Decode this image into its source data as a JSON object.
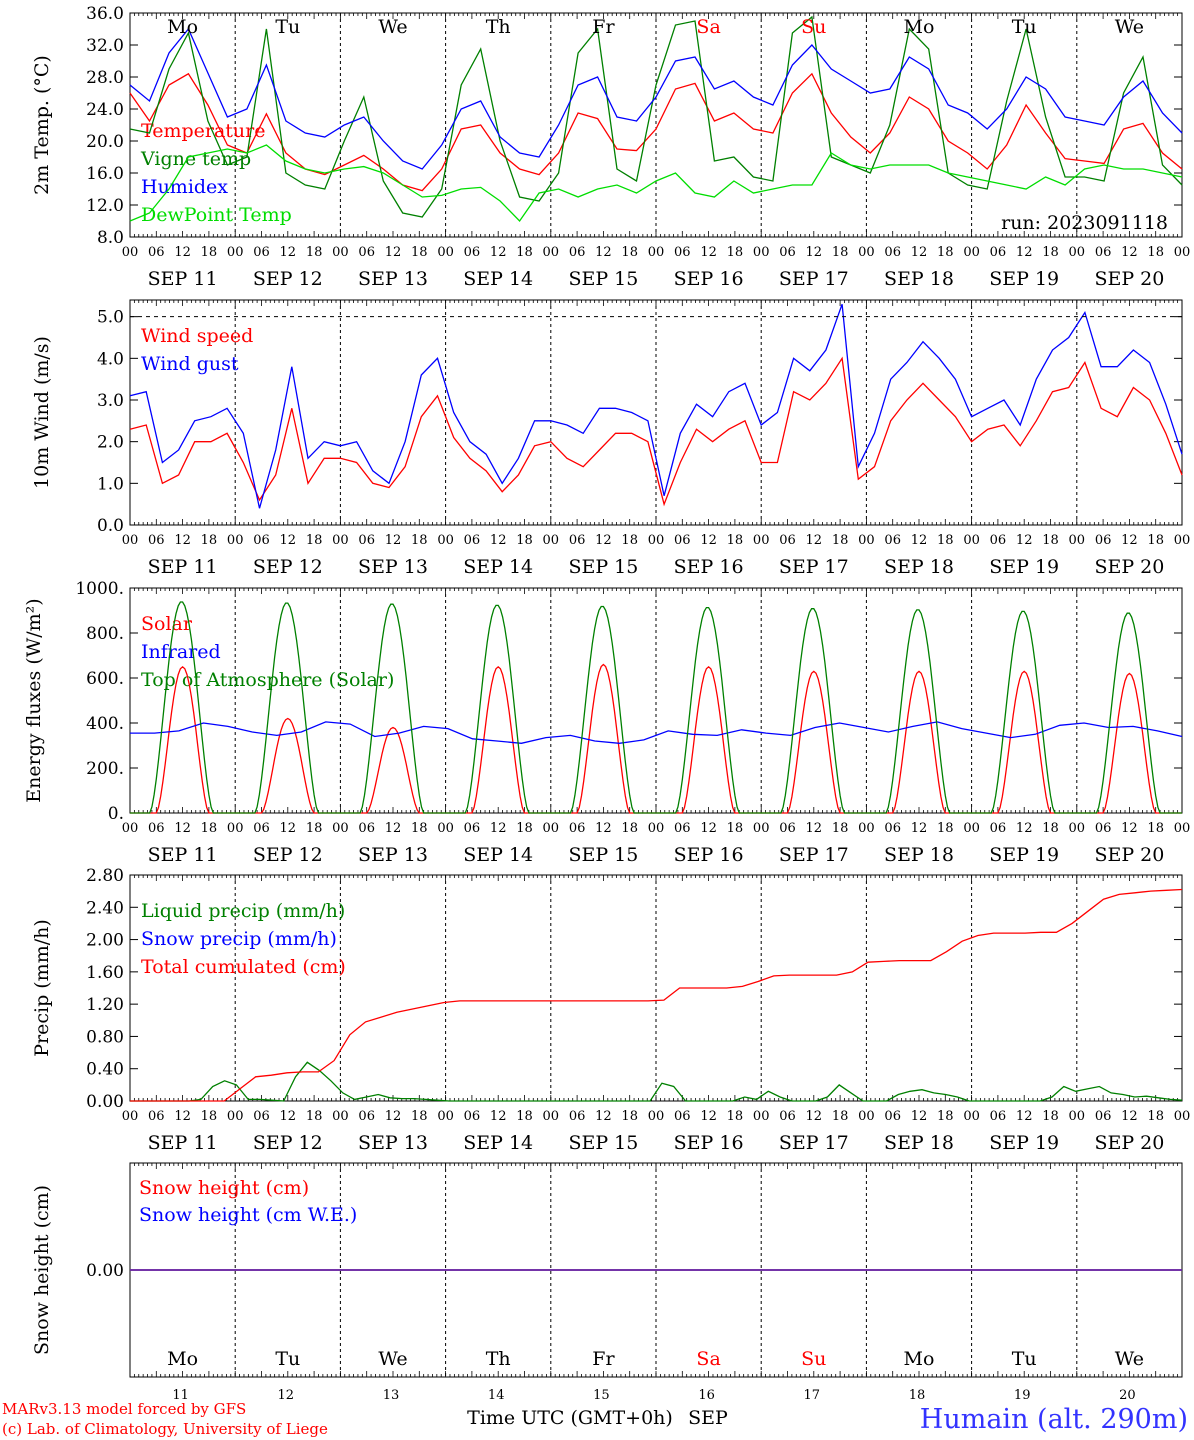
{
  "run_label": "run: 2023091118",
  "model_label": "MARv3.13 model forced by GFS",
  "lab_label": "(c) Lab. of Climatology, University of Liege",
  "xaxis_title": "Time UTC (GMT+0h)",
  "month_label": "SEP",
  "station_label": "Humain (alt. 290m)",
  "days": [
    {
      "dow": "Mo",
      "num": "11",
      "date": "SEP 11",
      "weekend": false
    },
    {
      "dow": "Tu",
      "num": "12",
      "date": "SEP 12",
      "weekend": false
    },
    {
      "dow": "We",
      "num": "13",
      "date": "SEP 13",
      "weekend": false
    },
    {
      "dow": "Th",
      "num": "14",
      "date": "SEP 14",
      "weekend": false
    },
    {
      "dow": "Fr",
      "num": "15",
      "date": "SEP 15",
      "weekend": false
    },
    {
      "dow": "Sa",
      "num": "16",
      "date": "SEP 16",
      "weekend": true
    },
    {
      "dow": "Su",
      "num": "17",
      "date": "SEP 17",
      "weekend": true
    },
    {
      "dow": "Mo",
      "num": "18",
      "date": "SEP 18",
      "weekend": false
    },
    {
      "dow": "Tu",
      "num": "19",
      "date": "SEP 19",
      "weekend": false
    },
    {
      "dow": "We",
      "num": "20",
      "date": "SEP 20",
      "weekend": false
    }
  ],
  "hour_ticks": [
    "00",
    "06",
    "12",
    "18"
  ],
  "final_hour_tick": "00",
  "colors": {
    "red": "#ff0000",
    "blue": "#0000ff",
    "green": "#008000",
    "lightgreen": "#00dd00",
    "purple": "#7030a0",
    "weekend": "#ff0000",
    "axis": "#000000",
    "station": "#3333ff"
  },
  "chart_data": [
    {
      "type": "line",
      "id": "temperature",
      "ylabel": "2m Temp. (°C)",
      "ylim": [
        8.0,
        36.0
      ],
      "yticks": [
        "8.0",
        "12.0",
        "16.0",
        "20.0",
        "24.0",
        "28.0",
        "32.0",
        "36.0"
      ],
      "legend": [
        "Temperature",
        "Vigne temp",
        "Humidex",
        "DewPoint Temp"
      ],
      "grid": false,
      "series": [
        {
          "name": "Temperature",
          "color": "red",
          "values": [
            26.0,
            22.5,
            27.0,
            28.4,
            24.5,
            19.5,
            18.5,
            23.4,
            18.5,
            16.5,
            15.8,
            17.0,
            18.2,
            16.5,
            14.5,
            13.8,
            16.5,
            21.5,
            22.0,
            18.5,
            16.5,
            15.8,
            18.5,
            23.5,
            22.8,
            19.0,
            18.8,
            21.5,
            26.5,
            27.2,
            22.5,
            23.5,
            21.5,
            21.0,
            26.0,
            28.4,
            23.5,
            20.5,
            18.5,
            21.0,
            25.5,
            24.0,
            20.0,
            18.5,
            16.5,
            19.5,
            24.5,
            21.0,
            17.8,
            17.5,
            17.2,
            21.5,
            22.2,
            18.5,
            16.5
          ]
        },
        {
          "name": "Vigne temp",
          "color": "green",
          "values": [
            21.5,
            21.0,
            29.0,
            33.5,
            22.5,
            17.0,
            18.0,
            34.0,
            16.0,
            14.5,
            14.0,
            20.0,
            25.5,
            15.0,
            11.0,
            10.5,
            14.0,
            27.0,
            31.5,
            20.0,
            13.0,
            12.5,
            16.0,
            31.0,
            34.0,
            16.5,
            15.0,
            27.0,
            34.5,
            35.0,
            17.5,
            18.0,
            15.5,
            15.0,
            33.5,
            35.5,
            18.0,
            17.0,
            16.0,
            22.0,
            34.0,
            31.5,
            16.0,
            14.5,
            14.0,
            25.0,
            34.0,
            23.0,
            15.5,
            15.5,
            15.0,
            26.0,
            30.5,
            17.0,
            14.5
          ]
        },
        {
          "name": "Humidex",
          "color": "blue",
          "values": [
            27.0,
            25.0,
            31.0,
            34.0,
            28.5,
            23.0,
            24.0,
            29.5,
            22.5,
            21.0,
            20.5,
            22.0,
            23.0,
            20.0,
            17.5,
            16.5,
            19.5,
            24.0,
            25.0,
            20.5,
            18.5,
            18.0,
            22.0,
            27.0,
            28.0,
            23.0,
            22.5,
            25.5,
            30.0,
            30.5,
            26.5,
            27.5,
            25.5,
            24.5,
            29.5,
            32.0,
            29.0,
            27.5,
            26.0,
            26.5,
            30.5,
            29.0,
            24.5,
            23.5,
            21.5,
            24.0,
            28.0,
            26.5,
            23.0,
            22.5,
            22.0,
            25.5,
            27.5,
            23.5,
            21.0
          ]
        },
        {
          "name": "DewPoint Temp",
          "color": "lightgreen",
          "values": [
            10.0,
            11.0,
            14.0,
            18.0,
            18.5,
            19.0,
            18.5,
            19.5,
            17.5,
            16.5,
            16.0,
            16.5,
            16.8,
            16.0,
            14.5,
            13.0,
            13.2,
            14.0,
            14.2,
            12.5,
            10.0,
            13.5,
            14.0,
            13.0,
            14.0,
            14.5,
            13.5,
            15.0,
            16.0,
            13.5,
            13.0,
            15.0,
            13.5,
            14.0,
            14.5,
            14.5,
            18.5,
            17.0,
            16.5,
            17.0,
            17.0,
            17.0,
            16.0,
            15.5,
            15.0,
            14.5,
            14.0,
            15.5,
            14.5,
            16.5,
            17.0,
            16.5,
            16.5,
            16.0,
            15.5
          ]
        }
      ]
    },
    {
      "type": "line",
      "id": "wind",
      "ylabel": "10m Wind (m/s)",
      "ylim": [
        0.0,
        5.4
      ],
      "yticks": [
        "0.0",
        "1.0",
        "2.0",
        "3.0",
        "4.0",
        "5.0"
      ],
      "legend": [
        "Wind speed",
        "Wind gust"
      ],
      "grid": false,
      "series": [
        {
          "name": "Wind speed",
          "color": "red",
          "values": [
            2.3,
            2.4,
            1.0,
            1.2,
            2.0,
            2.0,
            2.2,
            1.5,
            0.6,
            1.2,
            2.8,
            1.0,
            1.6,
            1.6,
            1.5,
            1.0,
            0.9,
            1.4,
            2.6,
            3.1,
            2.1,
            1.6,
            1.3,
            0.8,
            1.2,
            1.9,
            2.0,
            1.6,
            1.4,
            1.8,
            2.2,
            2.2,
            2.0,
            0.5,
            1.5,
            2.3,
            2.0,
            2.3,
            2.5,
            1.5,
            1.5,
            3.2,
            3.0,
            3.4,
            4.0,
            1.1,
            1.4,
            2.5,
            3.0,
            3.4,
            3.0,
            2.6,
            2.0,
            2.3,
            2.4,
            1.9,
            2.5,
            3.2,
            3.3,
            3.9,
            2.8,
            2.6,
            3.3,
            3.0,
            2.2,
            1.2
          ]
        },
        {
          "name": "Wind gust",
          "color": "blue",
          "values": [
            3.1,
            3.2,
            1.5,
            1.8,
            2.5,
            2.6,
            2.8,
            2.2,
            0.4,
            1.8,
            3.8,
            1.6,
            2.0,
            1.9,
            2.0,
            1.3,
            1.0,
            2.0,
            3.6,
            4.0,
            2.7,
            2.0,
            1.7,
            1.0,
            1.6,
            2.5,
            2.5,
            2.4,
            2.2,
            2.8,
            2.8,
            2.7,
            2.5,
            0.7,
            2.2,
            2.9,
            2.6,
            3.2,
            3.4,
            2.4,
            2.7,
            4.0,
            3.7,
            4.2,
            5.3,
            1.4,
            2.2,
            3.5,
            3.9,
            4.4,
            4.0,
            3.5,
            2.6,
            2.8,
            3.0,
            2.4,
            3.5,
            4.2,
            4.5,
            5.1,
            3.8,
            3.8,
            4.2,
            3.9,
            2.9,
            1.7
          ]
        }
      ]
    },
    {
      "type": "line",
      "id": "energy",
      "ylabel": "Energy fluxes (W/m²)",
      "ylim": [
        0,
        1000
      ],
      "yticks": [
        "0.",
        "200.",
        "400.",
        "600.",
        "800.",
        "1000."
      ],
      "legend": [
        "Solar",
        "Infrared",
        "Top of Atmosphere (Solar)"
      ],
      "grid": false,
      "series": [
        {
          "name": "Solar",
          "color": "red",
          "peaks": [
            650,
            420,
            380,
            650,
            660,
            650,
            630,
            630,
            630,
            620
          ]
        },
        {
          "name": "Infrared",
          "color": "blue",
          "values": [
            355,
            355,
            365,
            400,
            385,
            360,
            345,
            360,
            405,
            395,
            340,
            355,
            385,
            375,
            330,
            320,
            310,
            335,
            345,
            320,
            310,
            325,
            365,
            350,
            345,
            370,
            355,
            345,
            380,
            400,
            380,
            360,
            385,
            405,
            375,
            355,
            335,
            350,
            390,
            400,
            380,
            385,
            365,
            340
          ]
        },
        {
          "name": "Top of Atmosphere (Solar)",
          "color": "green",
          "peaks": [
            940,
            935,
            930,
            925,
            920,
            915,
            910,
            905,
            898,
            890
          ]
        }
      ]
    },
    {
      "type": "line",
      "id": "precip",
      "ylabel": "Precip (mm/h)",
      "ylim": [
        0.0,
        2.8
      ],
      "yticks": [
        "0.00",
        "0.40",
        "0.80",
        "1.20",
        "1.60",
        "2.00",
        "2.40",
        "2.80"
      ],
      "legend": [
        "Liquid precip (mm/h)",
        "Snow precip (mm/h)",
        "Total cumulated (cm)"
      ],
      "grid": false,
      "series": [
        {
          "name": "Liquid precip (mm/h)",
          "color": "green",
          "values": [
            0,
            0,
            0,
            0,
            0,
            0,
            0.02,
            0.18,
            0.25,
            0.2,
            0.02,
            0.02,
            0.01,
            0,
            0.3,
            0.48,
            0.38,
            0.25,
            0.1,
            0.02,
            0.05,
            0.08,
            0.04,
            0.03,
            0.03,
            0.02,
            0.01,
            0,
            0,
            0,
            0,
            0,
            0,
            0,
            0,
            0,
            0,
            0,
            0,
            0,
            0,
            0,
            0,
            0,
            0,
            0.22,
            0.18,
            0,
            0,
            0,
            0,
            0,
            0.05,
            0.02,
            0.12,
            0.05,
            0,
            0,
            0,
            0.05,
            0.2,
            0.1,
            0,
            0,
            0,
            0.08,
            0.12,
            0.14,
            0.1,
            0.08,
            0.05,
            0,
            0,
            0,
            0,
            0,
            0,
            0,
            0.05,
            0.18,
            0.12,
            0.15,
            0.18,
            0.1,
            0.08,
            0.05,
            0.06,
            0.04,
            0.02,
            0.01
          ]
        },
        {
          "name": "Total cumulated (cm)",
          "color": "red",
          "values": [
            0,
            0,
            0,
            0,
            0,
            0,
            0,
            0.15,
            0.3,
            0.32,
            0.35,
            0.36,
            0.36,
            0.5,
            0.82,
            0.98,
            1.04,
            1.1,
            1.14,
            1.18,
            1.22,
            1.24,
            1.24,
            1.24,
            1.24,
            1.24,
            1.24,
            1.24,
            1.24,
            1.24,
            1.24,
            1.24,
            1.24,
            1.24,
            1.25,
            1.4,
            1.4,
            1.4,
            1.4,
            1.42,
            1.48,
            1.55,
            1.56,
            1.56,
            1.56,
            1.56,
            1.6,
            1.72,
            1.73,
            1.74,
            1.74,
            1.74,
            1.85,
            1.98,
            2.05,
            2.08,
            2.08,
            2.08,
            2.09,
            2.09,
            2.2,
            2.35,
            2.5,
            2.56,
            2.58,
            2.6,
            2.61,
            2.62
          ]
        }
      ]
    },
    {
      "type": "line",
      "id": "snow",
      "ylabel": "Snow height (cm)",
      "ylim": [
        -1,
        1
      ],
      "yticks": [
        "0.00"
      ],
      "legend": [
        "Snow height (cm)",
        "Snow height (cm W.E.)"
      ],
      "grid": false,
      "series": [
        {
          "name": "Snow height (cm)",
          "color": "red",
          "values": [
            0,
            0
          ]
        },
        {
          "name": "Snow height (cm W.E.)",
          "color": "blue",
          "values": [
            0,
            0
          ]
        }
      ]
    }
  ]
}
